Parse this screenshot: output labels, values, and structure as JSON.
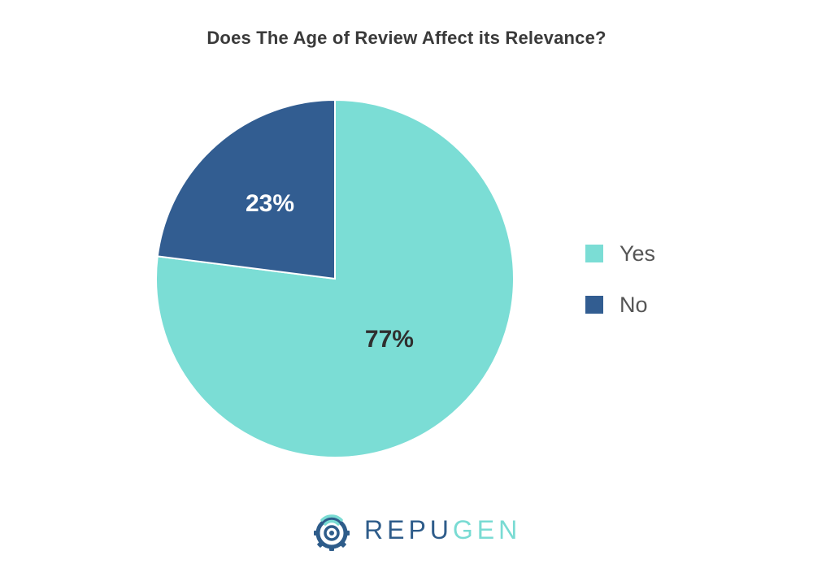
{
  "chart_data": {
    "type": "pie",
    "title": "Does The Age of Review Affect its Relevance?",
    "slices": [
      {
        "label": "Yes",
        "value": 77,
        "display": "77%",
        "color": "#7bddd5",
        "label_color": "#2f2f2f"
      },
      {
        "label": "No",
        "value": 23,
        "display": "23%",
        "color": "#325d91",
        "label_color": "#ffffff"
      }
    ],
    "legend": {
      "position": "right",
      "items": [
        "Yes",
        "No"
      ]
    }
  },
  "logo": {
    "part1": "REPU",
    "part2": "GEN"
  }
}
